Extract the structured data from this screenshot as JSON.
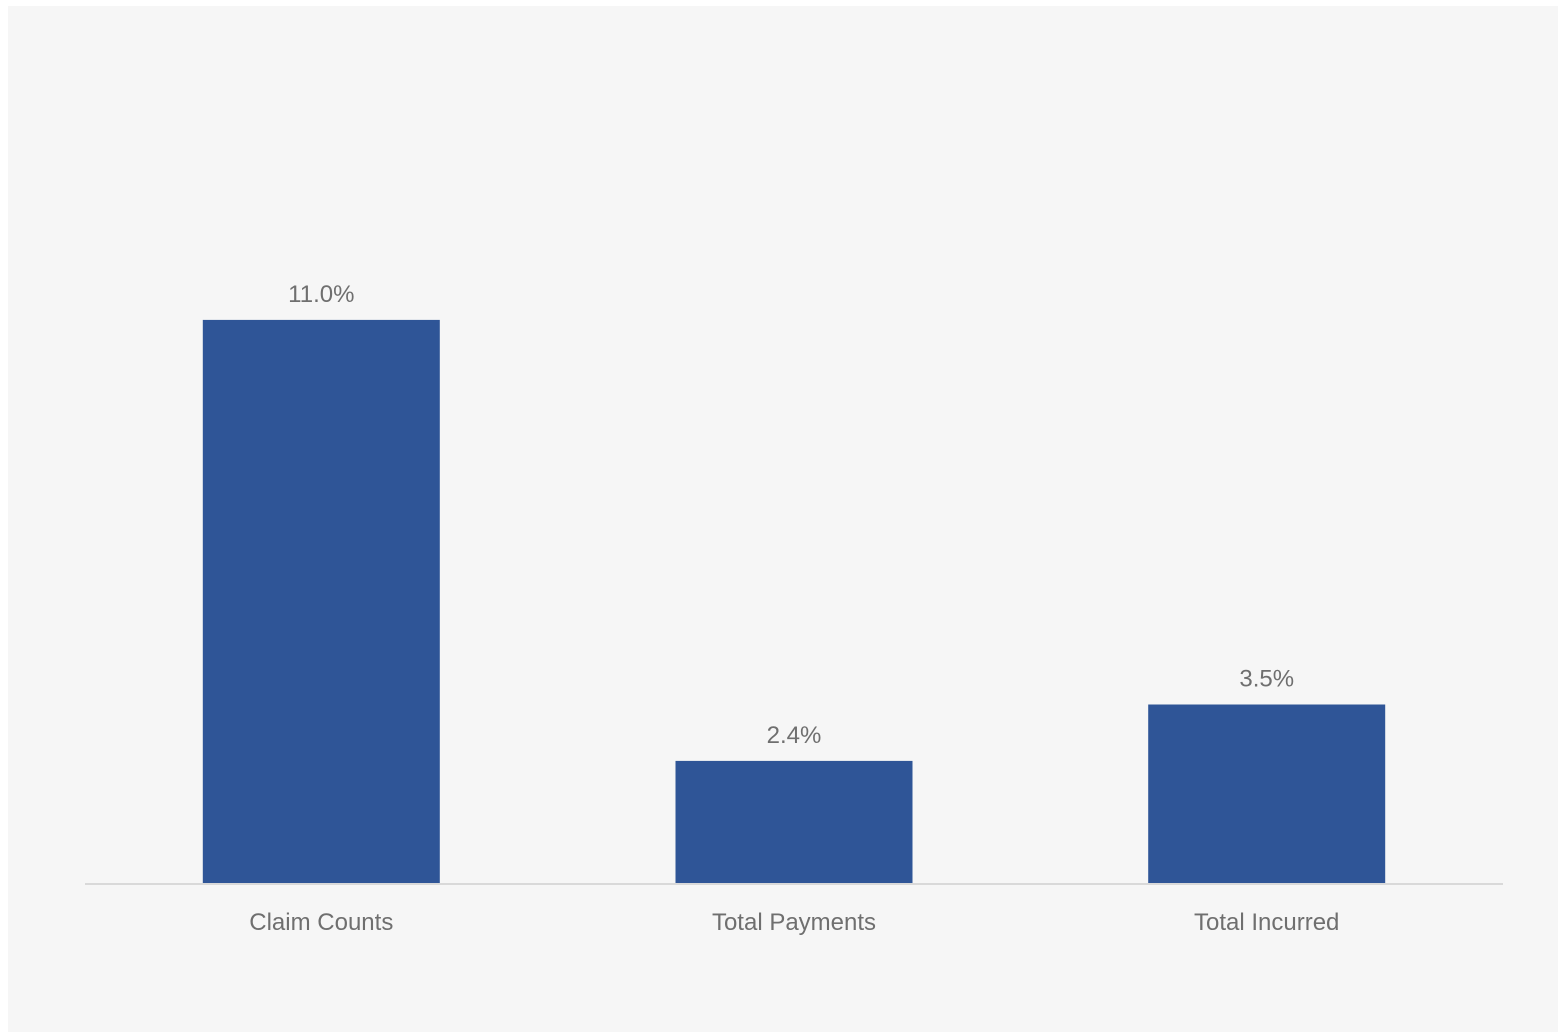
{
  "chart_data": {
    "type": "bar",
    "categories": [
      "Claim Counts",
      "Total Payments",
      "Total Incurred"
    ],
    "values": [
      11.0,
      2.4,
      3.5
    ],
    "data_labels": [
      "11.0%",
      "2.4%",
      "3.5%"
    ],
    "title": "",
    "xlabel": "",
    "ylabel": "",
    "ylim": [
      0,
      17.2
    ],
    "grid": false,
    "legend": "none",
    "bar_color": "#2f5597",
    "axis_color": "#d9d9d9",
    "label_color": "#6f6f6f",
    "background_color": "#f6f6f6"
  }
}
